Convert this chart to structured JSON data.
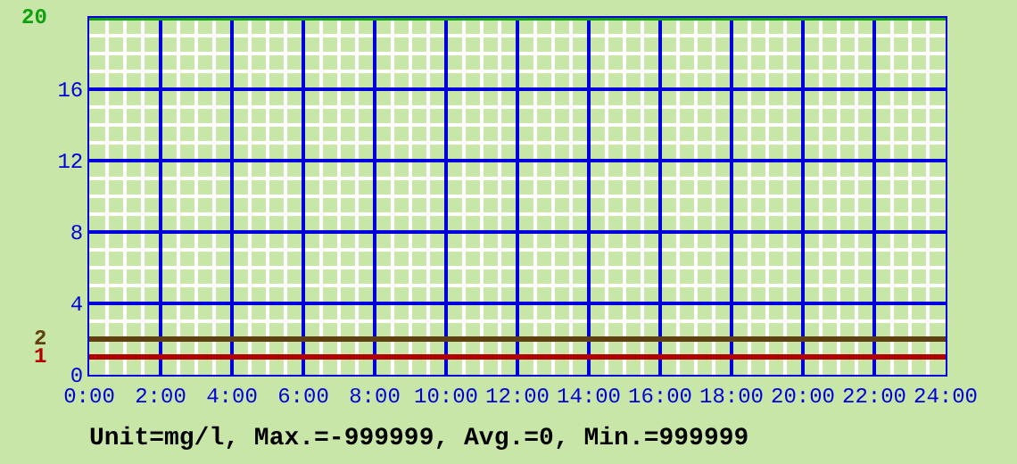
{
  "chart_data": {
    "type": "line",
    "xlim": [
      0,
      24
    ],
    "xticks": [
      {
        "value": 0,
        "label": "0:00"
      },
      {
        "value": 2,
        "label": "2:00"
      },
      {
        "value": 4,
        "label": "4:00"
      },
      {
        "value": 6,
        "label": "6:00"
      },
      {
        "value": 8,
        "label": "8:00"
      },
      {
        "value": 10,
        "label": "10:00"
      },
      {
        "value": 12,
        "label": "12:00"
      },
      {
        "value": 14,
        "label": "14:00"
      },
      {
        "value": 16,
        "label": "16:00"
      },
      {
        "value": 18,
        "label": "18:00"
      },
      {
        "value": 20,
        "label": "20:00"
      },
      {
        "value": 22,
        "label": "22:00"
      },
      {
        "value": 24,
        "label": "24:00"
      }
    ],
    "ylim": [
      0,
      20
    ],
    "yticks": [
      0,
      4,
      8,
      12,
      16,
      {
        "value": 20,
        "label": null
      }
    ],
    "grid": true,
    "ref_lines": [
      {
        "axis": "y",
        "value": 20,
        "label": "20",
        "color": "#10a010"
      },
      {
        "axis": "y",
        "value": 2,
        "label": "2",
        "color": "#604010"
      },
      {
        "axis": "y",
        "value": 1,
        "label": "1",
        "color": "#b00000"
      }
    ],
    "annotations": [
      "Unit=mg/l, Max.=-999999, Avg.=0, Min.=999999"
    ]
  }
}
